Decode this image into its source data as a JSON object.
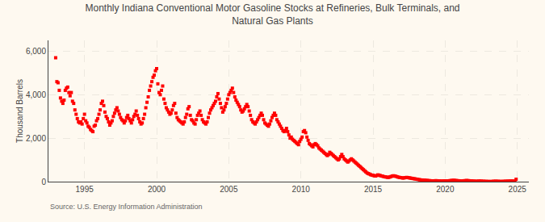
{
  "chart_data": {
    "type": "scatter",
    "title": "Monthly Indiana Conventional Motor Gasoline Stocks at Refineries, Bulk Terminals, and Natural Gas Plants",
    "ylabel": "Thousand Barrels",
    "annotations": [
      "Source: U.S. Energy Information Administration"
    ],
    "color": "#FF0000",
    "marker": "square",
    "grid": true,
    "xlim": [
      1992.5,
      2025.8
    ],
    "xticks": [
      1995,
      2000,
      2005,
      2010,
      2015,
      2020,
      2025
    ],
    "ylim": [
      0,
      6500
    ],
    "yticks": [
      0,
      {
        "value": 2000,
        "label": "2,000"
      },
      {
        "value": 4000,
        "label": "4,000"
      },
      {
        "value": 6000,
        "label": "6,000"
      }
    ],
    "x": [
      1993.0,
      1993.083,
      1993.167,
      1993.25,
      1993.333,
      1993.417,
      1993.5,
      1993.583,
      1993.667,
      1993.75,
      1993.833,
      1993.917,
      1994.0,
      1994.083,
      1994.167,
      1994.25,
      1994.333,
      1994.417,
      1994.5,
      1994.583,
      1994.667,
      1994.75,
      1994.833,
      1994.917,
      1995.0,
      1995.083,
      1995.167,
      1995.25,
      1995.333,
      1995.417,
      1995.5,
      1995.583,
      1995.667,
      1995.75,
      1995.833,
      1995.917,
      1996.0,
      1996.083,
      1996.167,
      1996.25,
      1996.333,
      1996.417,
      1996.5,
      1996.583,
      1996.667,
      1996.75,
      1996.833,
      1996.917,
      1997.0,
      1997.083,
      1997.167,
      1997.25,
      1997.333,
      1997.417,
      1997.5,
      1997.583,
      1997.667,
      1997.75,
      1997.833,
      1997.917,
      1998.0,
      1998.083,
      1998.167,
      1998.25,
      1998.333,
      1998.417,
      1998.5,
      1998.583,
      1998.667,
      1998.75,
      1998.833,
      1998.917,
      1999.0,
      1999.083,
      1999.167,
      1999.25,
      1999.333,
      1999.417,
      1999.5,
      1999.583,
      1999.667,
      1999.75,
      1999.833,
      1999.917,
      2000.0,
      2000.083,
      2000.167,
      2000.25,
      2000.333,
      2000.417,
      2000.5,
      2000.583,
      2000.667,
      2000.75,
      2000.833,
      2000.917,
      2001.0,
      2001.083,
      2001.167,
      2001.25,
      2001.333,
      2001.417,
      2001.5,
      2001.583,
      2001.667,
      2001.75,
      2001.833,
      2001.917,
      2002.0,
      2002.083,
      2002.167,
      2002.25,
      2002.333,
      2002.417,
      2002.5,
      2002.583,
      2002.667,
      2002.75,
      2002.833,
      2002.917,
      2003.0,
      2003.083,
      2003.167,
      2003.25,
      2003.333,
      2003.417,
      2003.5,
      2003.583,
      2003.667,
      2003.75,
      2003.833,
      2003.917,
      2004.0,
      2004.083,
      2004.167,
      2004.25,
      2004.333,
      2004.417,
      2004.5,
      2004.583,
      2004.667,
      2004.75,
      2004.833,
      2004.917,
      2005.0,
      2005.083,
      2005.167,
      2005.25,
      2005.333,
      2005.417,
      2005.5,
      2005.583,
      2005.667,
      2005.75,
      2005.833,
      2005.917,
      2006.0,
      2006.083,
      2006.167,
      2006.25,
      2006.333,
      2006.417,
      2006.5,
      2006.583,
      2006.667,
      2006.75,
      2006.833,
      2006.917,
      2007.0,
      2007.083,
      2007.167,
      2007.25,
      2007.333,
      2007.417,
      2007.5,
      2007.583,
      2007.667,
      2007.75,
      2007.833,
      2007.917,
      2008.0,
      2008.083,
      2008.167,
      2008.25,
      2008.333,
      2008.417,
      2008.5,
      2008.583,
      2008.667,
      2008.75,
      2008.833,
      2008.917,
      2009.0,
      2009.083,
      2009.167,
      2009.25,
      2009.333,
      2009.417,
      2009.5,
      2009.583,
      2009.667,
      2009.75,
      2009.833,
      2009.917,
      2010.0,
      2010.083,
      2010.167,
      2010.25,
      2010.333,
      2010.417,
      2010.5,
      2010.583,
      2010.667,
      2010.75,
      2010.833,
      2010.917,
      2011.0,
      2011.083,
      2011.167,
      2011.25,
      2011.333,
      2011.417,
      2011.5,
      2011.583,
      2011.667,
      2011.75,
      2011.833,
      2011.917,
      2012.0,
      2012.083,
      2012.167,
      2012.25,
      2012.333,
      2012.417,
      2012.5,
      2012.583,
      2012.667,
      2012.75,
      2012.833,
      2012.917,
      2013.0,
      2013.083,
      2013.167,
      2013.25,
      2013.333,
      2013.417,
      2013.5,
      2013.583,
      2013.667,
      2013.75,
      2013.833,
      2013.917,
      2014.0,
      2014.083,
      2014.167,
      2014.25,
      2014.333,
      2014.417,
      2014.5,
      2014.583,
      2014.667,
      2014.75,
      2014.833,
      2014.917,
      2015.0,
      2015.083,
      2015.167,
      2015.25,
      2015.333,
      2015.417,
      2015.5,
      2015.583,
      2015.667,
      2015.75,
      2015.833,
      2015.917,
      2016.0,
      2016.083,
      2016.167,
      2016.25,
      2016.333,
      2016.417,
      2016.5,
      2016.583,
      2016.667,
      2016.75,
      2016.833,
      2016.917,
      2017.0,
      2017.083,
      2017.167,
      2017.25,
      2017.333,
      2017.417,
      2017.5,
      2017.583,
      2017.667,
      2017.75,
      2017.833,
      2017.917,
      2018.0,
      2018.083,
      2018.167,
      2018.25,
      2018.333,
      2018.417,
      2018.5,
      2018.583,
      2018.667,
      2018.75,
      2018.833,
      2018.917,
      2019.0,
      2019.083,
      2019.167,
      2019.25,
      2019.333,
      2019.417,
      2019.5,
      2019.583,
      2019.667,
      2019.75,
      2019.833,
      2019.917,
      2020.0,
      2020.083,
      2020.167,
      2020.25,
      2020.333,
      2020.417,
      2020.5,
      2020.583,
      2020.667,
      2020.75,
      2020.833,
      2020.917,
      2021.0,
      2021.083,
      2021.167,
      2021.25,
      2021.333,
      2021.417,
      2021.5,
      2021.583,
      2021.667,
      2021.75,
      2021.833,
      2021.917,
      2022.0,
      2022.083,
      2022.167,
      2022.25,
      2022.333,
      2022.417,
      2022.5,
      2022.583,
      2022.667,
      2022.75,
      2022.833,
      2022.917,
      2023.0,
      2023.083,
      2023.167,
      2023.25,
      2023.333,
      2023.417,
      2023.5,
      2023.583,
      2023.667,
      2023.75,
      2023.833,
      2023.917,
      2024.0,
      2024.083,
      2024.167,
      2024.25,
      2024.333,
      2024.417,
      2024.5,
      2024.583,
      2024.667,
      2024.75,
      2024.833,
      2024.917
    ],
    "values": [
      5700,
      4600,
      4550,
      4200,
      3850,
      3700,
      3600,
      3750,
      4200,
      4300,
      4350,
      4100,
      3950,
      4100,
      3700,
      3600,
      3300,
      3100,
      2900,
      2750,
      2700,
      2750,
      2650,
      2900,
      3100,
      2800,
      2700,
      2550,
      2500,
      2400,
      2350,
      2300,
      2550,
      2600,
      2800,
      2900,
      3100,
      3300,
      3600,
      3700,
      3500,
      3200,
      3000,
      2900,
      2750,
      2600,
      2700,
      2800,
      3000,
      3150,
      3300,
      3400,
      3250,
      3100,
      2950,
      2850,
      2800,
      2700,
      2800,
      2950,
      3050,
      2900,
      2800,
      2700,
      2850,
      3000,
      3100,
      3250,
      3050,
      2900,
      2750,
      2650,
      2700,
      2900,
      3100,
      3400,
      3650,
      3900,
      4200,
      4400,
      4600,
      4800,
      4900,
      5100,
      5200,
      4500,
      4100,
      4000,
      4200,
      4400,
      3800,
      3600,
      3400,
      3300,
      3200,
      3100,
      3150,
      3300,
      3500,
      3600,
      3150,
      2950,
      2850,
      2800,
      2750,
      2700,
      2650,
      2750,
      2950,
      3100,
      3350,
      3450,
      3050,
      2850,
      2800,
      2700,
      2650,
      2850,
      3050,
      3150,
      3250,
      3050,
      2850,
      2750,
      2700,
      2650,
      2750,
      2950,
      3150,
      3300,
      3400,
      3500,
      3600,
      3700,
      3900,
      4050,
      3800,
      3600,
      3400,
      3200,
      3300,
      3450,
      3600,
      3800,
      4000,
      4100,
      4200,
      4300,
      4100,
      3900,
      3750,
      3650,
      3550,
      3450,
      3300,
      3200,
      3250,
      3350,
      3450,
      3550,
      3450,
      3250,
      3050,
      2850,
      2750,
      2700,
      2650,
      2750,
      2850,
      2950,
      3050,
      3150,
      3050,
      2850,
      2700,
      2650,
      2600,
      2550,
      2650,
      2800,
      2950,
      3050,
      3150,
      3050,
      2850,
      2750,
      2650,
      2550,
      2450,
      2350,
      2300,
      2350,
      2450,
      2300,
      2150,
      2000,
      2050,
      1950,
      1900,
      1850,
      1800,
      1750,
      1700,
      1850,
      1950,
      2050,
      2300,
      2350,
      2250,
      2050,
      1900,
      1750,
      1700,
      1650,
      1600,
      1700,
      1750,
      1700,
      1650,
      1550,
      1500,
      1450,
      1400,
      1350,
      1300,
      1250,
      1200,
      1250,
      1350,
      1300,
      1250,
      1200,
      1150,
      1100,
      1050,
      1000,
      1050,
      1150,
      1250,
      1150,
      1050,
      1000,
      950,
      900,
      950,
      1000,
      1050,
      1000,
      950,
      900,
      850,
      800,
      750,
      700,
      650,
      600,
      550,
      500,
      450,
      400,
      370,
      350,
      320,
      300,
      290,
      270,
      260,
      280,
      310,
      300,
      280,
      260,
      250,
      230,
      220,
      210,
      200,
      195,
      215,
      235,
      255,
      270,
      255,
      245,
      225,
      205,
      195,
      185,
      175,
      165,
      175,
      185,
      195,
      185,
      175,
      165,
      155,
      145,
      135,
      125,
      115,
      105,
      95,
      85,
      78,
      72,
      68,
      63,
      58,
      53,
      48,
      44,
      40,
      35,
      32,
      36,
      44,
      40,
      35,
      30,
      28,
      26,
      24,
      32,
      36,
      34,
      30,
      38,
      46,
      50,
      55,
      60,
      55,
      50,
      45,
      40,
      36,
      30,
      26,
      34,
      42,
      46,
      50,
      46,
      40,
      35,
      30,
      26,
      22,
      18,
      15,
      19,
      25,
      27,
      22,
      17,
      15,
      13,
      10,
      9,
      7,
      6,
      5,
      9,
      13,
      16,
      18,
      16,
      13,
      10,
      9,
      7,
      10,
      13,
      16,
      18,
      20,
      23,
      26,
      28,
      26,
      23,
      20,
      110
    ]
  }
}
